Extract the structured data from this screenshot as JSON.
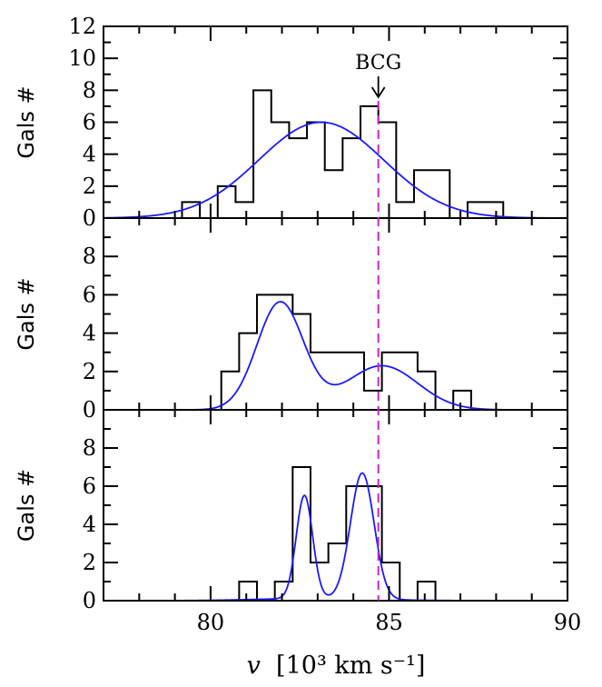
{
  "chart_data": {
    "type": "histogram",
    "xlabel_var": "v",
    "xlabel_units": "[10³ km s⁻¹]",
    "xlim": [
      77,
      90
    ],
    "x_ticks": [
      "80",
      "85",
      "90"
    ],
    "x_tick_values": [
      80,
      85,
      90
    ],
    "bcg": {
      "label": "BCG",
      "x": 84.7,
      "color": "#cc22cc"
    },
    "curve_color": "#1a1aff",
    "panels": [
      {
        "ylabel": "Gals #",
        "ylim": [
          0,
          12
        ],
        "y_ticks": [
          "0",
          "2",
          "4",
          "6",
          "8",
          "10",
          "12"
        ],
        "y_tick_values": [
          0,
          2,
          4,
          6,
          8,
          10,
          12
        ],
        "bin_edges": [
          79.2,
          79.7,
          80.2,
          80.7,
          81.2,
          81.7,
          82.2,
          82.7,
          83.2,
          83.7,
          84.2,
          84.7,
          85.2,
          85.7,
          86.2,
          86.7,
          87.2,
          87.7,
          88.2
        ],
        "counts": [
          1,
          0,
          2,
          1,
          8,
          6,
          5,
          6,
          3,
          5,
          7,
          6,
          1,
          3,
          3,
          0,
          1,
          1
        ],
        "model": [
          {
            "amp": 6.0,
            "mu": 83.1,
            "sigma": 1.75
          }
        ]
      },
      {
        "ylabel": "Gals #",
        "ylim": [
          0,
          10
        ],
        "y_ticks": [
          "0",
          "2",
          "4",
          "6",
          "8"
        ],
        "y_tick_values": [
          0,
          2,
          4,
          6,
          8
        ],
        "bin_edges": [
          80.3,
          80.8,
          81.3,
          81.8,
          82.3,
          82.8,
          83.3,
          83.8,
          84.3,
          84.8,
          85.3,
          85.8,
          86.3,
          86.8,
          87.3
        ],
        "counts": [
          2,
          4,
          6,
          6,
          5,
          3,
          3,
          3,
          1,
          3,
          3,
          2,
          0,
          1
        ],
        "model": [
          {
            "amp": 5.6,
            "mu": 81.95,
            "sigma": 0.65
          },
          {
            "amp": 2.3,
            "mu": 84.8,
            "sigma": 1.0
          }
        ]
      },
      {
        "ylabel": "Gals #",
        "ylim": [
          0,
          10
        ],
        "y_ticks": [
          "0",
          "2",
          "4",
          "6",
          "8"
        ],
        "y_tick_values": [
          0,
          2,
          4,
          6,
          8
        ],
        "bin_edges": [
          80.8,
          81.3,
          81.8,
          82.3,
          82.8,
          83.3,
          83.8,
          84.3,
          84.8,
          85.3,
          85.8,
          86.3
        ],
        "counts": [
          1,
          0,
          1,
          7,
          2,
          3,
          6,
          6,
          2,
          0,
          1
        ],
        "model": [
          {
            "amp": 5.4,
            "mu": 82.63,
            "sigma": 0.23
          },
          {
            "amp": 6.6,
            "mu": 84.25,
            "sigma": 0.33
          },
          {
            "amp": 0.12,
            "mu": 83.0,
            "sigma": 1.6
          }
        ]
      }
    ]
  }
}
